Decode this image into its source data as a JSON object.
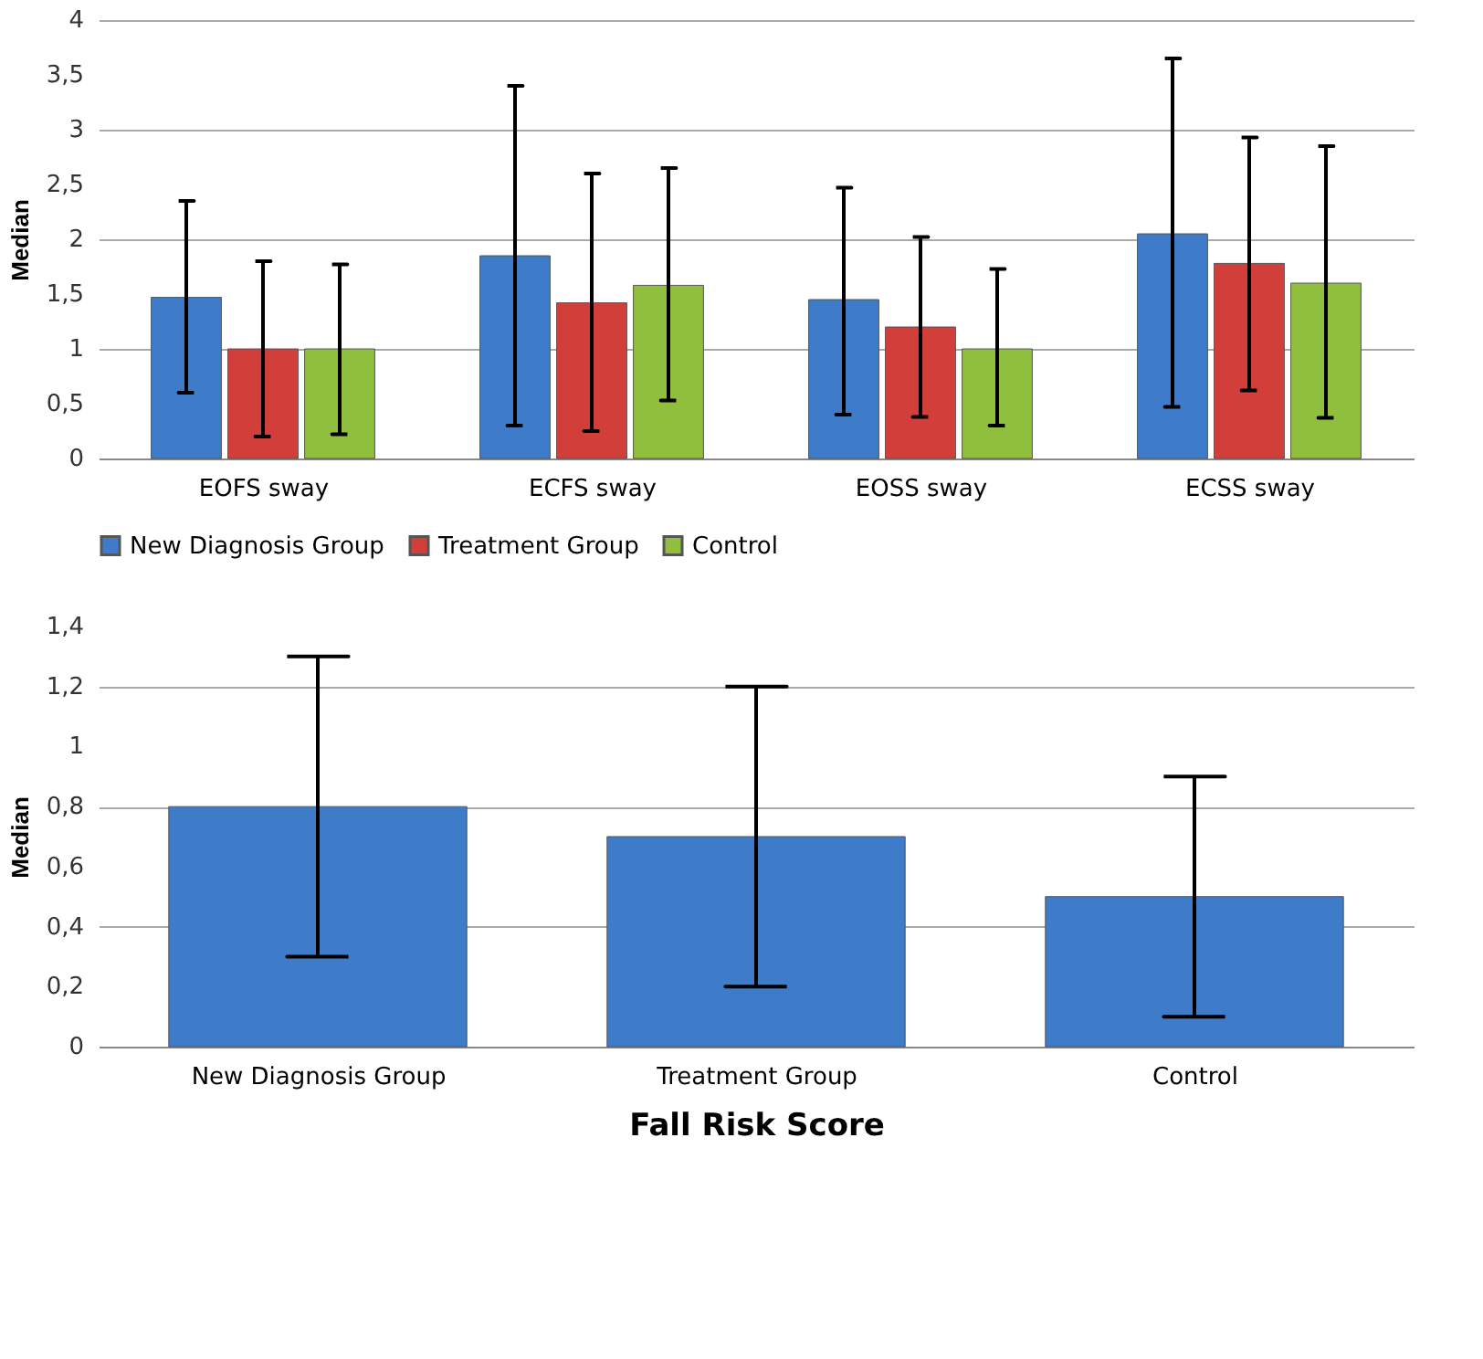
{
  "chart_data": [
    {
      "type": "bar",
      "ylabel": "Median",
      "categories": [
        "EOFS  sway",
        "ECFS sway",
        "EOSS sway",
        "ECSS sway"
      ],
      "series": [
        {
          "name": "New Diagnosis Group",
          "color": "#3e7cc9",
          "values": [
            1.47,
            1.85,
            1.45,
            2.05
          ],
          "errors": [
            [
              0.6,
              2.35
            ],
            [
              0.3,
              3.4
            ],
            [
              0.4,
              2.47
            ],
            [
              0.47,
              3.65
            ]
          ]
        },
        {
          "name": "Treatment Group",
          "color": "#d23f3a",
          "values": [
            1.0,
            1.42,
            1.2,
            1.78
          ],
          "errors": [
            [
              0.2,
              1.8
            ],
            [
              0.25,
              2.6
            ],
            [
              0.38,
              2.02
            ],
            [
              0.62,
              2.93
            ]
          ]
        },
        {
          "name": "Control",
          "color": "#8fbf3c",
          "values": [
            1.0,
            1.58,
            1.0,
            1.6
          ],
          "errors": [
            [
              0.22,
              1.77
            ],
            [
              0.53,
              2.65
            ],
            [
              0.3,
              1.73
            ],
            [
              0.37,
              2.85
            ]
          ]
        }
      ],
      "ylim": [
        0,
        4
      ],
      "yticks": [
        0,
        {
          "value": 0.5,
          "label": "0,5"
        },
        1,
        {
          "value": 1.5,
          "label": "1,5"
        },
        2,
        {
          "value": 2.5,
          "label": "2,5"
        },
        3,
        {
          "value": 3.5,
          "label": "3,5"
        },
        4
      ],
      "grid": "y",
      "legend": "bottom"
    },
    {
      "type": "bar",
      "ylabel": "Median",
      "xlabel": "Fall Risk Score",
      "categories": [
        "New Diagnosis Group",
        "Treatment Group",
        "Control"
      ],
      "series": [
        {
          "color": "#3e7cc9",
          "values": [
            0.8,
            0.7,
            0.5
          ],
          "errors": [
            [
              0.3,
              1.3
            ],
            [
              0.2,
              1.2
            ],
            [
              0.1,
              0.9
            ]
          ]
        }
      ],
      "ylim": [
        0,
        1.4
      ],
      "yticks": [
        0,
        {
          "value": 0.2,
          "label": "0,2"
        },
        {
          "value": 0.4,
          "label": "0,4"
        },
        {
          "value": 0.6,
          "label": "0,6"
        },
        {
          "value": 0.8,
          "label": "0,8"
        },
        1,
        {
          "value": 1.2,
          "label": "1,2"
        },
        {
          "value": 1.4,
          "label": "1,4"
        }
      ],
      "grid": "y"
    }
  ]
}
